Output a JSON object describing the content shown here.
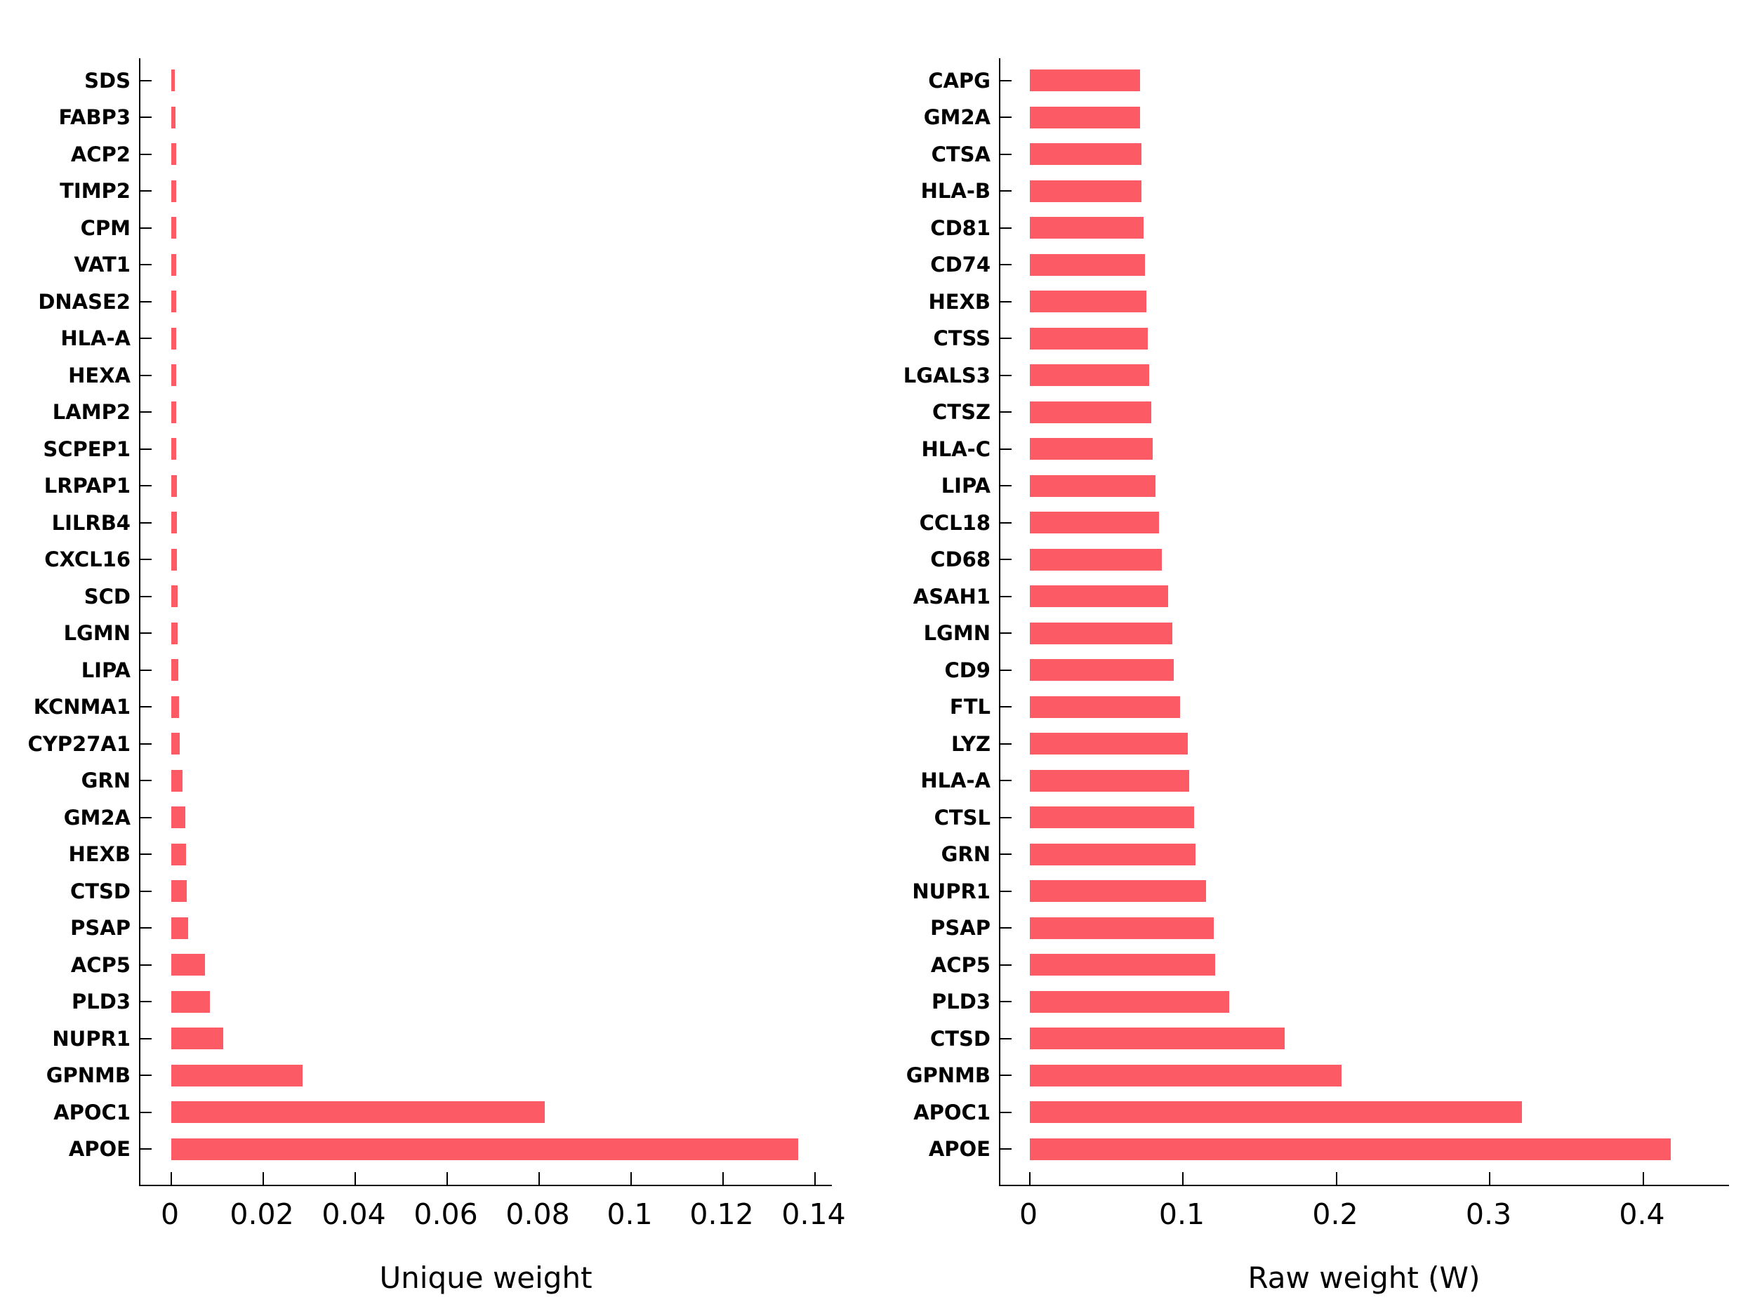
{
  "figure": {
    "background": "#ffffff",
    "bar_color": "#FC5B65",
    "text_color": "#000000",
    "axis_color": "#000000"
  },
  "chart_data": [
    {
      "type": "bar",
      "orientation": "horizontal",
      "title": "",
      "xlabel": "Unique weight",
      "ylabel": "",
      "grid": false,
      "legend_position": "none",
      "categories_top_to_bottom": [
        "SDS",
        "FABP3",
        "ACP2",
        "TIMP2",
        "CPM",
        "VAT1",
        "DNASE2",
        "HLA-A",
        "HEXA",
        "LAMP2",
        "SCPEP1",
        "LRPAP1",
        "LILRB4",
        "CXCL16",
        "SCD",
        "LGMN",
        "LIPA",
        "KCNMA1",
        "CYP27A1",
        "GRN",
        "GM2A",
        "HEXB",
        "CTSD",
        "PSAP",
        "ACP5",
        "PLD3",
        "NUPR1",
        "GPNMB",
        "APOC1",
        "APOE"
      ],
      "values": [
        0.0008,
        0.0009,
        0.001,
        0.001,
        0.001,
        0.001,
        0.001,
        0.0011,
        0.0011,
        0.0011,
        0.0011,
        0.0012,
        0.0012,
        0.0012,
        0.0013,
        0.0014,
        0.0016,
        0.0017,
        0.0019,
        0.0024,
        0.0031,
        0.0032,
        0.0033,
        0.0036,
        0.0073,
        0.0084,
        0.0113,
        0.0285,
        0.0812,
        0.1363
      ],
      "xlim": [
        -0.00672,
        0.14396
      ],
      "xticks": [
        0,
        0.02,
        0.04,
        0.06,
        0.08,
        0.1,
        0.12,
        0.14
      ],
      "xtick_labels": [
        "0",
        "0.02",
        "0.04",
        "0.06",
        "0.08",
        "0.1",
        "0.12",
        "0.14"
      ]
    },
    {
      "type": "bar",
      "orientation": "horizontal",
      "title": "",
      "xlabel": "Raw weight (W)",
      "ylabel": "",
      "grid": false,
      "legend_position": "none",
      "categories_top_to_bottom": [
        "CAPG",
        "GM2A",
        "CTSA",
        "HLA-B",
        "CD81",
        "CD74",
        "HEXB",
        "CTSS",
        "LGALS3",
        "CTSZ",
        "HLA-C",
        "LIPA",
        "CCL18",
        "CD68",
        "ASAH1",
        "LGMN",
        "CD9",
        "FTL",
        "LYZ",
        "HLA-A",
        "CTSL",
        "GRN",
        "NUPR1",
        "PSAP",
        "ACP5",
        "PLD3",
        "CTSD",
        "GPNMB",
        "APOC1",
        "APOE"
      ],
      "values": [
        0.072,
        0.072,
        0.073,
        0.073,
        0.074,
        0.075,
        0.076,
        0.077,
        0.078,
        0.079,
        0.08,
        0.082,
        0.084,
        0.086,
        0.09,
        0.093,
        0.094,
        0.098,
        0.103,
        0.104,
        0.107,
        0.108,
        0.115,
        0.12,
        0.121,
        0.13,
        0.166,
        0.203,
        0.321,
        0.418
      ],
      "xlim": [
        -0.01922,
        0.45676
      ],
      "xticks": [
        0,
        0.1,
        0.2,
        0.3,
        0.4
      ],
      "xtick_labels": [
        "0",
        "0.1",
        "0.2",
        "0.3",
        "0.4"
      ]
    }
  ]
}
